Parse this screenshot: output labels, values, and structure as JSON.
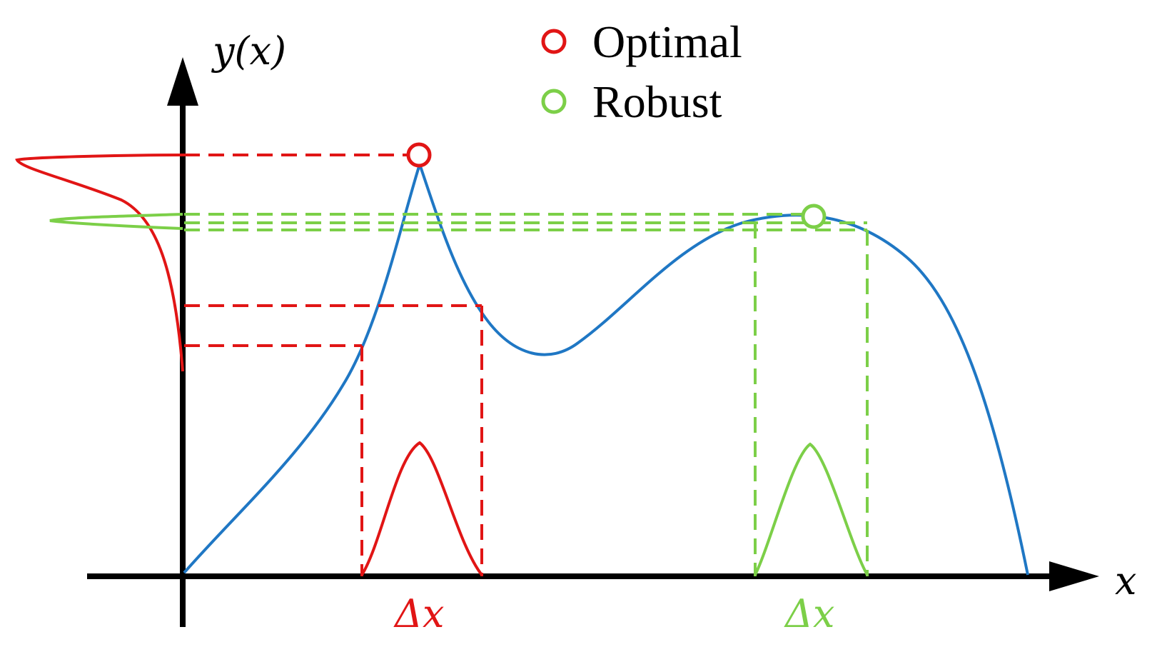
{
  "axes": {
    "y_label": "y(x)",
    "x_label": "x"
  },
  "legend": {
    "items": [
      {
        "label": "Optimal",
        "color": "#e11515"
      },
      {
        "label": "Robust",
        "color": "#7ccf48"
      }
    ]
  },
  "annotations": {
    "optimal_delta": "Δx",
    "robust_delta": "Δx"
  },
  "colors": {
    "curve": "#1f77c4",
    "optimal": "#e11515",
    "robust": "#7ccf48",
    "axis": "#000000"
  }
}
